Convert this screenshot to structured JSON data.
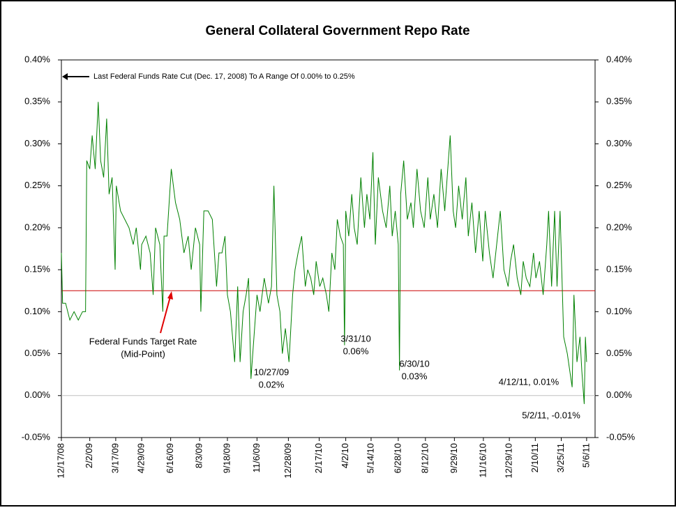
{
  "chart_data": {
    "type": "line",
    "title": "General Collateral Government Repo Rate",
    "x": [
      "12/17/08",
      "12/19/08",
      "12/24/08",
      "12/31/08",
      "1/7/09",
      "1/14/09",
      "1/21/09",
      "1/26/09",
      "1/28/09",
      "2/2/09",
      "2/6/09",
      "2/11/09",
      "2/16/09",
      "2/20/09",
      "2/25/09",
      "3/2/09",
      "3/6/09",
      "3/11/09",
      "3/16/09",
      "3/18/09",
      "3/25/09",
      "4/1/09",
      "4/8/09",
      "4/15/09",
      "4/20/09",
      "4/27/09",
      "4/29/09",
      "5/6/09",
      "5/13/09",
      "5/18/09",
      "5/22/09",
      "5/29/09",
      "6/3/09",
      "6/5/09",
      "6/10/09",
      "6/17/09",
      "6/24/09",
      "7/1/09",
      "7/8/09",
      "7/15/09",
      "7/20/09",
      "7/27/09",
      "8/3/09",
      "8/5/09",
      "8/10/09",
      "8/17/09",
      "8/24/09",
      "8/31/09",
      "9/4/09",
      "9/9/09",
      "9/14/09",
      "9/18/09",
      "9/23/09",
      "9/30/09",
      "10/5/09",
      "10/9/09",
      "10/14/09",
      "10/19/09",
      "10/23/09",
      "10/27/09",
      "11/2/09",
      "11/6/09",
      "11/11/09",
      "11/18/09",
      "11/25/09",
      "11/30/09",
      "12/4/09",
      "12/9/09",
      "12/14/09",
      "12/18/09",
      "12/23/09",
      "12/29/09",
      "1/4/10",
      "1/8/10",
      "1/13/10",
      "1/19/10",
      "1/25/10",
      "1/29/10",
      "2/3/10",
      "2/8/10",
      "2/12/10",
      "2/18/10",
      "2/23/10",
      "3/1/10",
      "3/5/10",
      "3/10/10",
      "3/15/10",
      "3/19/10",
      "3/24/10",
      "3/29/10",
      "3/31/10",
      "4/2/10",
      "4/7/10",
      "4/12/10",
      "4/16/10",
      "4/21/10",
      "4/27/10",
      "5/3/10",
      "5/7/10",
      "5/12/10",
      "5/17/10",
      "5/21/10",
      "5/26/10",
      "6/2/10",
      "6/8/10",
      "6/14/10",
      "6/18/10",
      "6/23/10",
      "6/28/10",
      "6/30/10",
      "7/2/10",
      "7/7/10",
      "7/13/10",
      "7/19/10",
      "7/23/10",
      "7/29/10",
      "8/4/10",
      "8/10/10",
      "8/16/10",
      "8/20/10",
      "8/26/10",
      "9/1/10",
      "9/7/10",
      "9/13/10",
      "9/17/10",
      "9/22/10",
      "9/27/10",
      "10/1/10",
      "10/6/10",
      "10/12/10",
      "10/18/10",
      "10/22/10",
      "10/28/10",
      "11/3/10",
      "11/9/10",
      "11/15/10",
      "11/19/10",
      "11/26/10",
      "12/2/10",
      "12/8/10",
      "12/14/10",
      "12/20/10",
      "12/27/10",
      "12/31/10",
      "1/5/11",
      "1/11/11",
      "1/17/11",
      "1/21/11",
      "1/26/11",
      "2/1/11",
      "2/7/11",
      "2/11/11",
      "2/17/11",
      "2/23/11",
      "3/1/11",
      "3/4/11",
      "3/9/11",
      "3/14/11",
      "3/18/11",
      "3/23/11",
      "3/29/11",
      "4/4/11",
      "4/8/11",
      "4/12/11",
      "4/15/11",
      "4/20/11",
      "4/25/11",
      "4/28/11",
      "5/2/11",
      "5/4/11",
      "5/6/11"
    ],
    "series": [
      {
        "name": "General Collateral Government Repo Rate",
        "color": "#008000",
        "values": [
          0.17,
          0.11,
          0.11,
          0.09,
          0.1,
          0.09,
          0.1,
          0.1,
          0.28,
          0.27,
          0.31,
          0.27,
          0.35,
          0.28,
          0.26,
          0.33,
          0.24,
          0.26,
          0.15,
          0.25,
          0.22,
          0.21,
          0.2,
          0.18,
          0.2,
          0.15,
          0.18,
          0.19,
          0.17,
          0.12,
          0.2,
          0.18,
          0.1,
          0.19,
          0.19,
          0.27,
          0.23,
          0.21,
          0.17,
          0.19,
          0.15,
          0.2,
          0.18,
          0.1,
          0.22,
          0.22,
          0.21,
          0.13,
          0.17,
          0.17,
          0.19,
          0.12,
          0.1,
          0.04,
          0.13,
          0.04,
          0.1,
          0.12,
          0.14,
          0.02,
          0.08,
          0.12,
          0.1,
          0.14,
          0.11,
          0.13,
          0.25,
          0.12,
          0.1,
          0.05,
          0.08,
          0.04,
          0.12,
          0.15,
          0.17,
          0.19,
          0.13,
          0.15,
          0.14,
          0.12,
          0.16,
          0.13,
          0.14,
          0.12,
          0.1,
          0.17,
          0.15,
          0.21,
          0.19,
          0.18,
          0.06,
          0.22,
          0.19,
          0.24,
          0.2,
          0.18,
          0.26,
          0.2,
          0.24,
          0.21,
          0.29,
          0.18,
          0.26,
          0.22,
          0.2,
          0.25,
          0.19,
          0.22,
          0.18,
          0.03,
          0.24,
          0.28,
          0.21,
          0.23,
          0.2,
          0.27,
          0.22,
          0.2,
          0.26,
          0.21,
          0.24,
          0.2,
          0.27,
          0.22,
          0.26,
          0.31,
          0.22,
          0.2,
          0.25,
          0.21,
          0.26,
          0.19,
          0.23,
          0.17,
          0.22,
          0.16,
          0.22,
          0.17,
          0.14,
          0.18,
          0.22,
          0.15,
          0.13,
          0.16,
          0.18,
          0.14,
          0.12,
          0.16,
          0.14,
          0.13,
          0.17,
          0.14,
          0.16,
          0.12,
          0.18,
          0.22,
          0.13,
          0.22,
          0.13,
          0.22,
          0.07,
          0.05,
          0.03,
          0.01,
          0.12,
          0.04,
          0.07,
          0.03,
          -0.01,
          0.07,
          0.04
        ]
      }
    ],
    "xlim": [
      "12/17/08",
      "5/20/11"
    ],
    "xticks": [
      "12/17/08",
      "2/2/09",
      "3/17/09",
      "4/29/09",
      "6/16/09",
      "8/3/09",
      "9/18/09",
      "11/6/09",
      "12/28/09",
      "2/17/10",
      "4/2/10",
      "5/14/10",
      "6/28/10",
      "8/12/10",
      "9/29/10",
      "11/16/10",
      "12/29/10",
      "2/10/11",
      "3/25/11",
      "5/6/11"
    ],
    "ylim": [
      -0.05,
      0.4
    ],
    "yticks": [
      {
        "value": -0.05,
        "label": "-0.05%"
      },
      {
        "value": 0,
        "label": "0.00%"
      },
      {
        "value": 0.05,
        "label": "0.05%"
      },
      {
        "value": 0.1,
        "label": "0.10%"
      },
      {
        "value": 0.15,
        "label": "0.15%"
      },
      {
        "value": 0.2,
        "label": "0.20%"
      },
      {
        "value": 0.25,
        "label": "0.25%"
      },
      {
        "value": 0.3,
        "label": "0.30%"
      },
      {
        "value": 0.35,
        "label": "0.35%"
      },
      {
        "value": 0.4,
        "label": "0.40%"
      }
    ],
    "y2lim": [
      -0.05,
      0.4
    ],
    "y2ticks": [
      {
        "value": -0.05,
        "label": "-0.05%"
      },
      {
        "value": 0,
        "label": "0.00%"
      },
      {
        "value": 0.05,
        "label": "0.05%"
      },
      {
        "value": 0.1,
        "label": "0.10%"
      },
      {
        "value": 0.15,
        "label": "0.15%"
      },
      {
        "value": 0.2,
        "label": "0.20%"
      },
      {
        "value": 0.25,
        "label": "0.25%"
      },
      {
        "value": 0.3,
        "label": "0.30%"
      },
      {
        "value": 0.35,
        "label": "0.35%"
      },
      {
        "value": 0.4,
        "label": "0.40%"
      }
    ],
    "reference_lines": [
      {
        "value": 0.125,
        "color": "#cc0000",
        "label": [
          "Federal Funds Target Rate",
          "(Mid-Point)"
        ]
      },
      {
        "value": 0,
        "color": "#c0c0c0"
      }
    ],
    "annotations": [
      {
        "text": [
          "Last Federal Funds Rate Cut (Dec. 17, 2008) To A Range Of 0.00% to 0.25%"
        ]
      },
      {
        "text": [
          "10/27/09",
          "0.02%"
        ]
      },
      {
        "text": [
          "3/31/10",
          "0.06%"
        ]
      },
      {
        "text": [
          "6/30/10",
          "0.03%"
        ]
      },
      {
        "text": [
          "4/12/11, 0.01%"
        ]
      },
      {
        "text": [
          "5/2/11, -0.01%"
        ]
      }
    ]
  }
}
